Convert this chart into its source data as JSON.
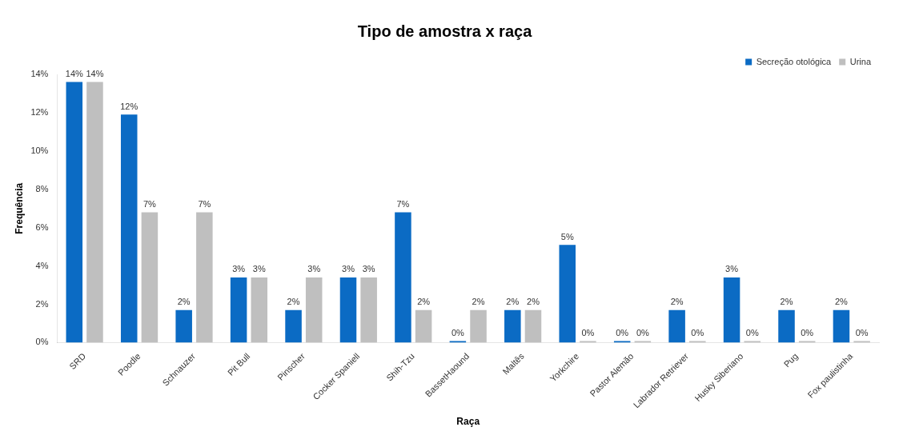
{
  "chart_data": {
    "type": "bar",
    "title": "Tipo de amostra x raça",
    "xlabel": "Raça",
    "ylabel": "Frequência",
    "categories": [
      "SRD",
      "Poodle",
      "Schnauzer",
      "Pit Bull",
      "Pinscher",
      "Cocker Spaniell",
      "Shih-Tzu",
      "BassetHaound",
      "Maltês",
      "Yorkchire",
      "Pastor Alemão",
      "Labrador Retriever",
      "Husky Siberiano",
      "Pug",
      "Fox paulistinha"
    ],
    "series": [
      {
        "name": "Secreção otológica",
        "color": "#0b6bc4",
        "values": [
          13.6,
          11.9,
          1.7,
          3.4,
          1.7,
          3.4,
          6.8,
          0,
          1.7,
          5.1,
          0,
          1.7,
          3.4,
          1.7,
          1.7
        ],
        "value_labels": [
          "14%",
          "12%",
          "2%",
          "3%",
          "2%",
          "3%",
          "7%",
          "0%",
          "2%",
          "5%",
          "0%",
          "2%",
          "3%",
          "2%",
          "2%"
        ]
      },
      {
        "name": "Urina",
        "color": "#bfbfbf",
        "values": [
          13.6,
          6.8,
          6.8,
          3.4,
          3.4,
          3.4,
          1.7,
          1.7,
          1.7,
          0,
          0,
          0,
          0,
          0,
          0
        ],
        "value_labels": [
          "14%",
          "7%",
          "7%",
          "3%",
          "3%",
          "3%",
          "2%",
          "2%",
          "2%",
          "0%",
          "0%",
          "0%",
          "0%",
          "0%",
          "0%"
        ]
      }
    ],
    "ylim": [
      0,
      14
    ],
    "yticks": [
      {
        "value": 0,
        "label": "0%"
      },
      {
        "value": 2,
        "label": "2%"
      },
      {
        "value": 4,
        "label": "4%"
      },
      {
        "value": 6,
        "label": "6%"
      },
      {
        "value": 8,
        "label": "8%"
      },
      {
        "value": 10,
        "label": "10%"
      },
      {
        "value": 12,
        "label": "12%"
      },
      {
        "value": 14,
        "label": "14%"
      }
    ],
    "grid": false,
    "legend": "top right"
  }
}
